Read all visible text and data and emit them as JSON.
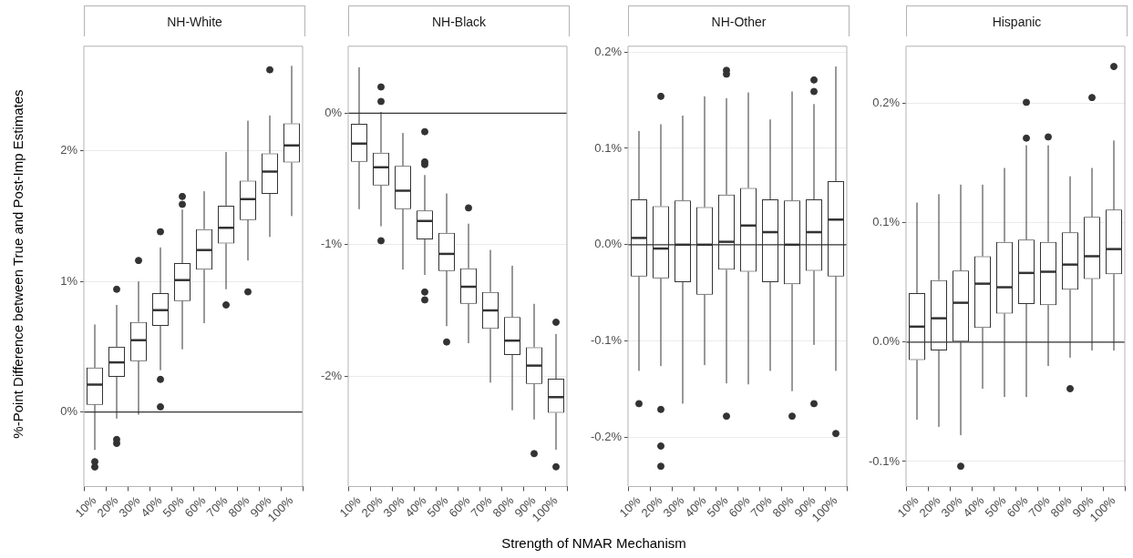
{
  "chart_data": [
    {
      "type": "box",
      "title": "NH-White",
      "ylabel": "%-Point Difference between True and Post-Imp Estimates",
      "categories": [
        "10%",
        "20%",
        "30%",
        "40%",
        "50%",
        "60%",
        "70%",
        "80%",
        "90%",
        "100%"
      ],
      "ylim": [
        -0.57,
        2.8
      ],
      "yticks": [
        {
          "value": 0,
          "label": "0%"
        },
        {
          "value": 1,
          "label": "1%"
        },
        {
          "value": 2,
          "label": "2%"
        }
      ],
      "grid": "y",
      "ref_lines": [
        {
          "axis": "y",
          "value": 0
        }
      ],
      "boxes": [
        {
          "low": -0.29,
          "q1": 0.055,
          "median": 0.21,
          "q3": 0.34,
          "high": 0.67,
          "outliers": [
            -0.38,
            -0.42
          ]
        },
        {
          "low": -0.05,
          "q1": 0.27,
          "median": 0.38,
          "q3": 0.5,
          "high": 0.82,
          "outliers": [
            0.94,
            -0.21,
            -0.24
          ]
        },
        {
          "low": -0.02,
          "q1": 0.39,
          "median": 0.55,
          "q3": 0.69,
          "high": 1.0,
          "outliers": [
            1.16
          ]
        },
        {
          "low": 0.32,
          "q1": 0.66,
          "median": 0.78,
          "q3": 0.91,
          "high": 1.26,
          "outliers": [
            1.38,
            0.25,
            0.04
          ]
        },
        {
          "low": 0.48,
          "q1": 0.85,
          "median": 1.01,
          "q3": 1.14,
          "high": 1.55,
          "outliers": [
            1.65,
            1.59
          ]
        },
        {
          "low": 0.68,
          "q1": 1.09,
          "median": 1.24,
          "q3": 1.4,
          "high": 1.69
        },
        {
          "low": 0.94,
          "q1": 1.29,
          "median": 1.41,
          "q3": 1.58,
          "high": 1.99,
          "outliers": [
            0.82
          ]
        },
        {
          "low": 1.16,
          "q1": 1.47,
          "median": 1.63,
          "q3": 1.77,
          "high": 2.23,
          "outliers": [
            0.92
          ]
        },
        {
          "low": 1.34,
          "q1": 1.67,
          "median": 1.84,
          "q3": 1.98,
          "high": 2.27,
          "outliers": [
            2.62
          ]
        },
        {
          "low": 1.5,
          "q1": 1.91,
          "median": 2.04,
          "q3": 2.21,
          "high": 2.65
        }
      ]
    },
    {
      "type": "box",
      "title": "NH-Black",
      "xlabel": "Strength of NMAR Mechanism",
      "categories": [
        "10%",
        "20%",
        "30%",
        "40%",
        "50%",
        "60%",
        "70%",
        "80%",
        "90%",
        "100%"
      ],
      "ylim": [
        -2.84,
        0.51
      ],
      "yticks": [
        {
          "value": -2,
          "label": "-2%"
        },
        {
          "value": -1,
          "label": "-1%"
        },
        {
          "value": 0,
          "label": "0%"
        }
      ],
      "grid": "y",
      "ref_lines": [
        {
          "axis": "y",
          "value": 0
        }
      ],
      "boxes": [
        {
          "low": -0.73,
          "q1": -0.37,
          "median": -0.23,
          "q3": -0.08,
          "high": 0.35
        },
        {
          "low": -0.86,
          "q1": -0.55,
          "median": -0.41,
          "q3": -0.3,
          "high": 0.01,
          "outliers": [
            0.2,
            0.09,
            -0.97
          ]
        },
        {
          "low": -1.19,
          "q1": -0.73,
          "median": -0.59,
          "q3": -0.4,
          "high": -0.15
        },
        {
          "low": -1.23,
          "q1": -0.96,
          "median": -0.82,
          "q3": -0.74,
          "high": -0.47,
          "outliers": [
            -0.14,
            -0.37,
            -0.39,
            -1.36,
            -1.42
          ]
        },
        {
          "low": -1.62,
          "q1": -1.2,
          "median": -1.07,
          "q3": -0.91,
          "high": -0.61,
          "outliers": [
            -1.74
          ]
        },
        {
          "low": -1.75,
          "q1": -1.45,
          "median": -1.32,
          "q3": -1.18,
          "high": -0.84,
          "outliers": [
            -0.72
          ]
        },
        {
          "low": -2.05,
          "q1": -1.64,
          "median": -1.5,
          "q3": -1.36,
          "high": -1.04
        },
        {
          "low": -2.26,
          "q1": -1.84,
          "median": -1.73,
          "q3": -1.55,
          "high": -1.16
        },
        {
          "low": -2.33,
          "q1": -2.06,
          "median": -1.92,
          "q3": -1.78,
          "high": -1.45,
          "outliers": [
            -2.59
          ]
        },
        {
          "low": -2.56,
          "q1": -2.28,
          "median": -2.16,
          "q3": -2.02,
          "high": -1.68,
          "outliers": [
            -1.59,
            -2.69
          ]
        }
      ]
    },
    {
      "type": "box",
      "title": "NH-Other",
      "categories": [
        "10%",
        "20%",
        "30%",
        "40%",
        "50%",
        "60%",
        "70%",
        "80%",
        "90%",
        "100%"
      ],
      "ylim": [
        -0.251,
        0.206
      ],
      "yticks": [
        {
          "value": -0.2,
          "label": "-0.2%"
        },
        {
          "value": -0.1,
          "label": "-0.1%"
        },
        {
          "value": 0,
          "label": "0.0%"
        },
        {
          "value": 0.1,
          "label": "0.1%"
        },
        {
          "value": 0.2,
          "label": "0.2%"
        }
      ],
      "grid": "y",
      "ref_lines": [
        {
          "axis": "y",
          "value": 0
        }
      ],
      "boxes": [
        {
          "low": -0.131,
          "q1": -0.033,
          "median": 0.007,
          "q3": 0.047,
          "high": 0.118,
          "outliers": [
            -0.165
          ]
        },
        {
          "low": -0.126,
          "q1": -0.035,
          "median": -0.004,
          "q3": 0.04,
          "high": 0.125,
          "outliers": [
            0.154,
            -0.171,
            -0.209,
            -0.23
          ]
        },
        {
          "low": -0.165,
          "q1": -0.039,
          "median": 0,
          "q3": 0.046,
          "high": 0.134
        },
        {
          "low": -0.125,
          "q1": -0.052,
          "median": 0,
          "q3": 0.039,
          "high": 0.154
        },
        {
          "low": -0.144,
          "q1": -0.026,
          "median": 0.003,
          "q3": 0.052,
          "high": 0.152,
          "outliers": [
            0.181,
            0.177,
            -0.178
          ]
        },
        {
          "low": -0.145,
          "q1": -0.028,
          "median": 0.02,
          "q3": 0.059,
          "high": 0.158
        },
        {
          "low": -0.131,
          "q1": -0.039,
          "median": 0.013,
          "q3": 0.047,
          "high": 0.13
        },
        {
          "low": -0.152,
          "q1": -0.041,
          "median": 0,
          "q3": 0.046,
          "high": 0.159,
          "outliers": [
            -0.178
          ]
        },
        {
          "low": -0.104,
          "q1": -0.027,
          "median": 0.013,
          "q3": 0.047,
          "high": 0.146,
          "outliers": [
            0.171,
            0.159,
            -0.165
          ]
        },
        {
          "low": -0.131,
          "q1": -0.033,
          "median": 0.026,
          "q3": 0.066,
          "high": 0.185,
          "outliers": [
            -0.196
          ]
        }
      ]
    },
    {
      "type": "box",
      "title": "Hispanic",
      "categories": [
        "10%",
        "20%",
        "30%",
        "40%",
        "50%",
        "60%",
        "70%",
        "80%",
        "90%",
        "100%"
      ],
      "ylim": [
        -0.121,
        0.248
      ],
      "yticks": [
        {
          "value": -0.1,
          "label": "-0.1%"
        },
        {
          "value": 0,
          "label": "0.0%"
        },
        {
          "value": 0.1,
          "label": "0.1%"
        },
        {
          "value": 0.2,
          "label": "0.2%"
        }
      ],
      "grid": "y",
      "ref_lines": [
        {
          "axis": "y",
          "value": 0
        }
      ],
      "boxes": [
        {
          "low": -0.065,
          "q1": -0.015,
          "median": 0.013,
          "q3": 0.041,
          "high": 0.117
        },
        {
          "low": -0.071,
          "q1": -0.007,
          "median": 0.02,
          "q3": 0.052,
          "high": 0.124
        },
        {
          "low": -0.078,
          "q1": 0,
          "median": 0.033,
          "q3": 0.06,
          "high": 0.132,
          "outliers": [
            -0.104
          ]
        },
        {
          "low": -0.039,
          "q1": 0.012,
          "median": 0.049,
          "q3": 0.072,
          "high": 0.132
        },
        {
          "low": -0.046,
          "q1": 0.024,
          "median": 0.046,
          "q3": 0.084,
          "high": 0.146
        },
        {
          "low": -0.046,
          "q1": 0.032,
          "median": 0.058,
          "q3": 0.086,
          "high": 0.165,
          "outliers": [
            0.201,
            0.171
          ]
        },
        {
          "low": -0.02,
          "q1": 0.031,
          "median": 0.059,
          "q3": 0.084,
          "high": 0.165,
          "outliers": [
            0.172
          ]
        },
        {
          "low": -0.013,
          "q1": 0.044,
          "median": 0.065,
          "q3": 0.092,
          "high": 0.139,
          "outliers": [
            -0.039
          ]
        },
        {
          "low": -0.007,
          "q1": 0.053,
          "median": 0.072,
          "q3": 0.105,
          "high": 0.146,
          "outliers": [
            0.205
          ]
        },
        {
          "low": -0.007,
          "q1": 0.057,
          "median": 0.078,
          "q3": 0.111,
          "high": 0.169,
          "outliers": [
            0.231
          ]
        }
      ]
    }
  ]
}
